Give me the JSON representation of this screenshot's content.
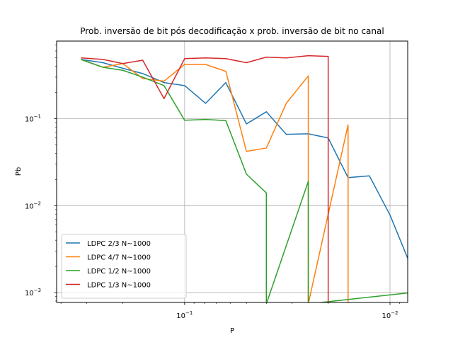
{
  "chart_data": {
    "type": "line",
    "title": "Prob. inversão de bit pós decodificação x prob. inversão de bit no canal",
    "xlabel": "P",
    "ylabel": "Pb",
    "x_scale": "log",
    "y_scale": "log",
    "x_inverted": true,
    "xlim": [
      0.42,
      0.0082
    ],
    "ylim": [
      0.00077,
      0.78
    ],
    "grid": true,
    "legend_position": "lower-left",
    "x_ticks": [
      {
        "value": 0.1,
        "base": "10",
        "exp": "−1"
      },
      {
        "value": 0.01,
        "base": "10",
        "exp": "−2"
      }
    ],
    "y_ticks": [
      {
        "value": 0.001,
        "base": "10",
        "exp": "−3"
      },
      {
        "value": 0.01,
        "base": "10",
        "exp": "−2"
      },
      {
        "value": 0.1,
        "base": "10",
        "exp": "−1"
      }
    ],
    "series": [
      {
        "name": "LDPC 2/3 N~1000",
        "color": "#1f77b4",
        "points": [
          [
            0.32,
            0.48
          ],
          [
            0.25,
            0.44
          ],
          [
            0.2,
            0.38
          ],
          [
            0.16,
            0.33
          ],
          [
            0.126,
            0.26
          ],
          [
            0.1,
            0.24
          ],
          [
            0.079,
            0.15
          ],
          [
            0.063,
            0.26
          ],
          [
            0.05,
            0.087
          ],
          [
            0.04,
            0.12
          ],
          [
            0.032,
            0.066
          ],
          [
            0.025,
            0.067
          ],
          [
            0.02,
            0.06
          ],
          [
            0.016,
            0.021
          ],
          [
            0.0126,
            0.022
          ],
          [
            0.01,
            0.0078
          ],
          [
            0.0079,
            0.002
          ],
          [
            0.0063,
            0.002
          ]
        ]
      },
      {
        "name": "LDPC 4/7 N~1000",
        "color": "#ff7f0e",
        "points": [
          [
            0.32,
            0.48
          ],
          [
            0.25,
            0.39
          ],
          [
            0.2,
            0.43
          ],
          [
            0.16,
            0.29
          ],
          [
            0.126,
            0.27
          ],
          [
            0.1,
            0.42
          ],
          [
            0.079,
            0.42
          ],
          [
            0.063,
            0.35
          ],
          [
            0.05,
            0.042
          ],
          [
            0.04,
            0.046
          ],
          [
            0.032,
            0.15
          ],
          [
            0.025,
            0.31
          ],
          [
            0.025,
            null
          ],
          [
            0.016,
            0.085
          ],
          [
            0.016,
            null
          ]
        ]
      },
      {
        "name": "LDPC 1/2 N~1000",
        "color": "#2ca02c",
        "points": [
          [
            0.32,
            0.48
          ],
          [
            0.25,
            0.39
          ],
          [
            0.2,
            0.36
          ],
          [
            0.16,
            0.3
          ],
          [
            0.126,
            0.24
          ],
          [
            0.1,
            0.096
          ],
          [
            0.079,
            0.098
          ],
          [
            0.063,
            0.095
          ],
          [
            0.05,
            0.023
          ],
          [
            0.04,
            0.014
          ],
          [
            0.04,
            null
          ],
          [
            0.025,
            0.019
          ],
          [
            0.025,
            null
          ],
          [
            0.0079,
            0.001
          ],
          [
            0.0079,
            null
          ]
        ]
      },
      {
        "name": "LDPC 1/3 N~1000",
        "color": "#d62728",
        "points": [
          [
            0.32,
            0.5
          ],
          [
            0.25,
            0.48
          ],
          [
            0.2,
            0.43
          ],
          [
            0.16,
            0.47
          ],
          [
            0.126,
            0.17
          ],
          [
            0.1,
            0.49
          ],
          [
            0.079,
            0.5
          ],
          [
            0.063,
            0.49
          ],
          [
            0.05,
            0.44
          ],
          [
            0.04,
            0.51
          ],
          [
            0.032,
            0.5
          ],
          [
            0.025,
            0.53
          ],
          [
            0.02,
            0.52
          ],
          [
            0.02,
            null
          ]
        ]
      }
    ]
  }
}
